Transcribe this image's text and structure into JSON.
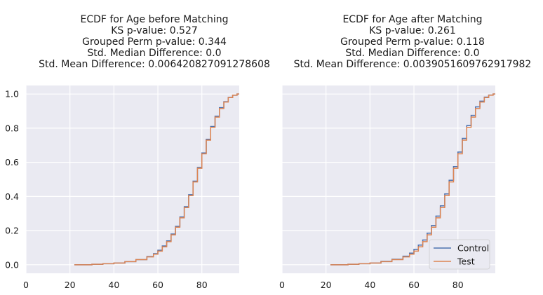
{
  "chart_data": [
    {
      "type": "line",
      "title_lines": [
        "ECDF for Age before Matching",
        "KS p-value: 0.527",
        "Grouped Perm p-value: 0.344",
        "Std. Median Difference: 0.0",
        "Std. Mean Difference: 0.006420827091278608"
      ],
      "xlim": [
        0,
        97
      ],
      "ylim": [
        -0.05,
        1.05
      ],
      "xticks": [
        0,
        20,
        40,
        60,
        80
      ],
      "yticks": [
        0.0,
        0.2,
        0.4,
        0.6,
        0.8,
        1.0
      ],
      "grid": true,
      "legend": null,
      "series": [
        {
          "name": "Control",
          "color": "#4c72b0",
          "x": [
            22,
            30,
            35,
            40,
            45,
            50,
            55,
            58,
            60,
            62,
            64,
            66,
            68,
            70,
            72,
            74,
            76,
            78,
            80,
            82,
            84,
            86,
            88,
            90,
            92,
            94,
            96,
            97
          ],
          "y": [
            0.0,
            0.003,
            0.006,
            0.01,
            0.018,
            0.03,
            0.048,
            0.065,
            0.085,
            0.11,
            0.14,
            0.18,
            0.225,
            0.28,
            0.34,
            0.41,
            0.49,
            0.57,
            0.655,
            0.735,
            0.81,
            0.87,
            0.92,
            0.955,
            0.98,
            0.993,
            1.0,
            1.0
          ]
        },
        {
          "name": "Test",
          "color": "#dd8452",
          "x": [
            22,
            30,
            35,
            40,
            45,
            50,
            55,
            58,
            60,
            62,
            64,
            66,
            68,
            70,
            72,
            74,
            76,
            78,
            80,
            82,
            84,
            86,
            88,
            90,
            92,
            94,
            96,
            97
          ],
          "y": [
            0.0,
            0.003,
            0.006,
            0.01,
            0.018,
            0.03,
            0.046,
            0.062,
            0.08,
            0.105,
            0.135,
            0.175,
            0.22,
            0.275,
            0.335,
            0.405,
            0.485,
            0.565,
            0.65,
            0.73,
            0.805,
            0.865,
            0.915,
            0.953,
            0.979,
            0.993,
            1.0,
            1.0
          ]
        }
      ]
    },
    {
      "type": "line",
      "title_lines": [
        "ECDF for Age after Matching",
        "KS p-value: 0.261",
        "Grouped Perm p-value: 0.118",
        "Std. Median Difference: 0.0",
        "Std. Mean Difference: 0.003905160976291798​2"
      ],
      "xlim": [
        0,
        97
      ],
      "ylim": [
        -0.05,
        1.05
      ],
      "xticks": [
        0,
        20,
        40,
        60,
        80
      ],
      "yticks": [
        0.0,
        0.2,
        0.4,
        0.6,
        0.8,
        1.0
      ],
      "grid": true,
      "legend": "lower right",
      "series": [
        {
          "name": "Control",
          "color": "#4c72b0",
          "x": [
            22,
            30,
            35,
            40,
            45,
            50,
            55,
            58,
            60,
            62,
            64,
            66,
            68,
            70,
            72,
            74,
            76,
            78,
            80,
            82,
            84,
            86,
            88,
            90,
            92,
            94,
            96,
            97
          ],
          "y": [
            0.0,
            0.003,
            0.006,
            0.01,
            0.02,
            0.032,
            0.05,
            0.068,
            0.09,
            0.115,
            0.145,
            0.185,
            0.23,
            0.285,
            0.345,
            0.415,
            0.495,
            0.575,
            0.66,
            0.74,
            0.815,
            0.875,
            0.925,
            0.958,
            0.982,
            0.994,
            1.0,
            1.0
          ]
        },
        {
          "name": "Test",
          "color": "#dd8452",
          "x": [
            22,
            30,
            35,
            40,
            45,
            50,
            55,
            58,
            60,
            62,
            64,
            66,
            68,
            70,
            72,
            74,
            76,
            78,
            80,
            82,
            84,
            86,
            88,
            90,
            92,
            94,
            96,
            97
          ],
          "y": [
            0.0,
            0.003,
            0.006,
            0.01,
            0.018,
            0.03,
            0.046,
            0.062,
            0.08,
            0.105,
            0.135,
            0.175,
            0.22,
            0.275,
            0.335,
            0.405,
            0.485,
            0.565,
            0.65,
            0.73,
            0.805,
            0.865,
            0.915,
            0.953,
            0.979,
            0.993,
            1.0,
            1.0
          ]
        }
      ]
    }
  ]
}
